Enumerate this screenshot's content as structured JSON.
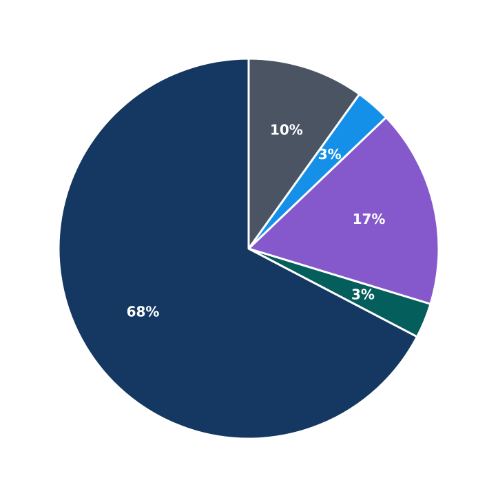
{
  "chart_data": {
    "type": "pie",
    "values": [
      10,
      3,
      17,
      3,
      68
    ],
    "value_labels": [
      "10%",
      "3%",
      "17%",
      "3%",
      "68%"
    ],
    "colors": [
      "#4a5462",
      "#1590e8",
      "#8558cc",
      "#035e5c",
      "#143861"
    ]
  }
}
